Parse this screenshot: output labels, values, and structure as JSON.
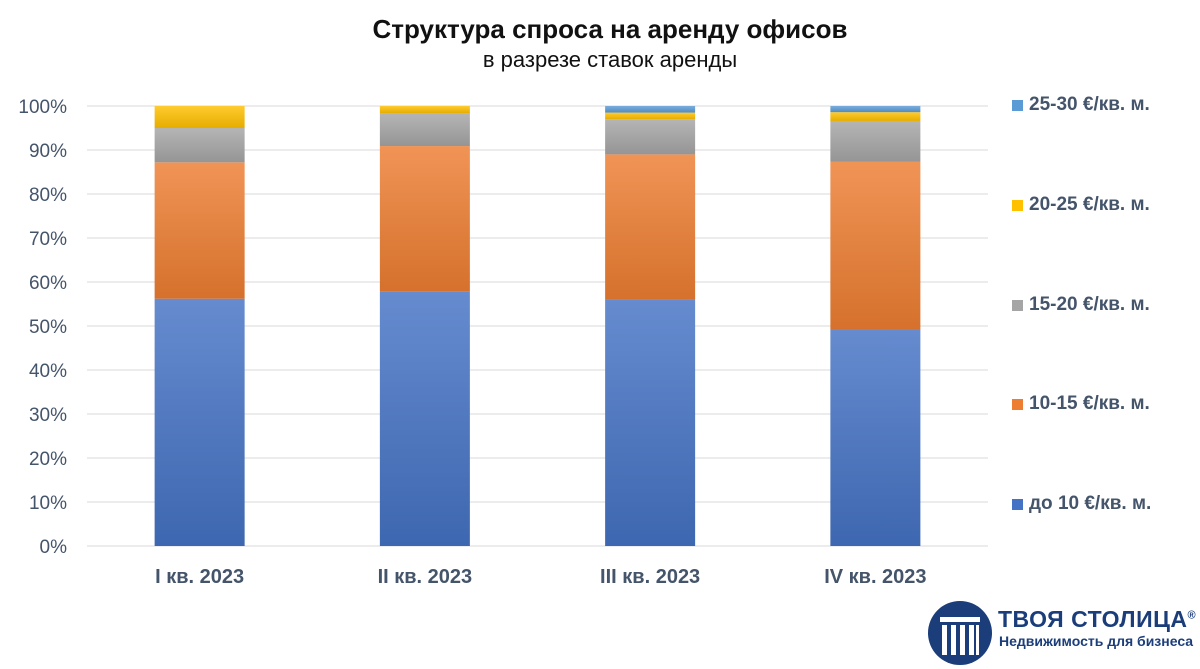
{
  "chart_data": {
    "type": "bar",
    "stacked": true,
    "percent": true,
    "title": "Структура спроса на аренду офисов",
    "subtitle": "в разрезе ставок аренды",
    "categories": [
      "I кв. 2023",
      "II кв. 2023",
      "III кв. 2023",
      "IV кв. 2023"
    ],
    "series": [
      {
        "name": "до 10 €/кв. м.",
        "color": "#4472c4",
        "values": [
          56.2,
          57.8,
          56.0,
          49.1
        ]
      },
      {
        "name": "10-15 €/кв. м.",
        "color": "#ed7d31",
        "values": [
          31.0,
          33.1,
          33.0,
          38.2
        ]
      },
      {
        "name": "15-20 €/кв. м.",
        "color": "#a5a5a5",
        "values": [
          7.8,
          7.5,
          8.0,
          9.3
        ]
      },
      {
        "name": "20-25 €/кв. м.",
        "color": "#ffc000",
        "values": [
          5.0,
          1.6,
          1.5,
          2.0
        ]
      },
      {
        "name": "25-30 €/кв. м.",
        "color": "#5b9bd5",
        "values": [
          0,
          0,
          1.5,
          1.4
        ]
      }
    ],
    "ylim": [
      0,
      100
    ],
    "yticks": [
      "0%",
      "10%",
      "20%",
      "30%",
      "40%",
      "50%",
      "60%",
      "70%",
      "80%",
      "90%",
      "100%"
    ],
    "grid": true,
    "legend_position": "right"
  },
  "logo": {
    "name": "ТВОЯ СТОЛИЦА",
    "reg": "®",
    "tagline": "Недвижимость для бизнеса"
  }
}
